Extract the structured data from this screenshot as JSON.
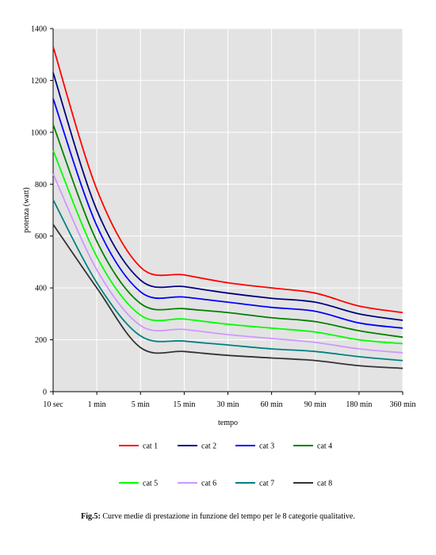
{
  "chart_data": {
    "type": "line",
    "title": "",
    "xlabel": "tempo",
    "ylabel": "potenza (watt)",
    "categories": [
      "10 sec",
      "1 min",
      "5 min",
      "15 min",
      "30 min",
      "60 min",
      "90 min",
      "180 min",
      "360 min"
    ],
    "ylim": [
      0,
      1400
    ],
    "yticks": [
      0,
      200,
      400,
      600,
      800,
      1000,
      1200,
      1400
    ],
    "grid": true,
    "legend_position": "bottom",
    "series": [
      {
        "name": "cat 1",
        "color": "#ff0000",
        "values": [
          1330,
          780,
          480,
          450,
          420,
          400,
          380,
          330,
          305
        ]
      },
      {
        "name": "cat 2",
        "color": "#000080",
        "values": [
          1230,
          700,
          430,
          405,
          380,
          360,
          345,
          300,
          275
        ]
      },
      {
        "name": "cat 3",
        "color": "#0000ff",
        "values": [
          1130,
          640,
          385,
          365,
          345,
          325,
          310,
          265,
          245
        ]
      },
      {
        "name": "cat 4",
        "color": "#008000",
        "values": [
          1030,
          580,
          340,
          320,
          305,
          285,
          270,
          235,
          210
        ]
      },
      {
        "name": "cat 5",
        "color": "#00ff00",
        "values": [
          930,
          520,
          295,
          280,
          260,
          245,
          230,
          200,
          185
        ]
      },
      {
        "name": "cat 6",
        "color": "#cc99ff",
        "values": [
          840,
          470,
          255,
          240,
          220,
          205,
          190,
          165,
          150
        ]
      },
      {
        "name": "cat 7",
        "color": "#008080",
        "values": [
          740,
          420,
          215,
          195,
          180,
          165,
          155,
          135,
          120
        ]
      },
      {
        "name": "cat 8",
        "color": "#333333",
        "values": [
          645,
          400,
          170,
          155,
          140,
          130,
          120,
          100,
          90
        ]
      }
    ]
  },
  "caption": {
    "label": "Fig.5:",
    "text": " Curve medie di prestazione in funzione del tempo per le 8 categorie qualitative."
  }
}
